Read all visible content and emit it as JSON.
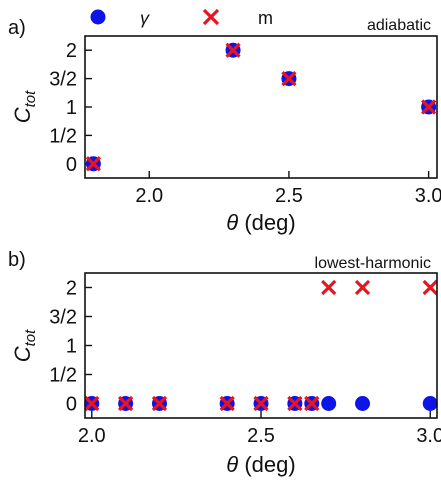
{
  "chart_data": [
    {
      "type": "scatter",
      "panel_label": "a)",
      "annotation": "adiabatic",
      "xlabel": "θ (deg)",
      "ylabel": "C_tot",
      "xlim": [
        1.77,
        3.03
      ],
      "ylim": [
        -0.25,
        2.25
      ],
      "xticks": [
        2.0,
        2.5,
        3.0
      ],
      "xtick_labels": [
        "2.0",
        "2.5",
        "3.0"
      ],
      "yticks": [
        0,
        0.5,
        1,
        1.5,
        2
      ],
      "ytick_labels": [
        "0",
        "1/2",
        "1",
        "3/2",
        "2"
      ],
      "series": [
        {
          "name": "γ",
          "marker": "circle",
          "color": "#0d14e8",
          "x": [
            1.8,
            2.3,
            2.5,
            3.0
          ],
          "y": [
            0,
            2,
            1.5,
            1
          ]
        },
        {
          "name": "m",
          "marker": "cross",
          "color": "#e8141e",
          "x": [
            1.8,
            2.3,
            2.5,
            3.0
          ],
          "y": [
            0,
            2,
            1.5,
            1
          ]
        }
      ]
    },
    {
      "type": "scatter",
      "panel_label": "b)",
      "annotation": "lowest-harmonic",
      "xlabel": "θ (deg)",
      "ylabel": "C_tot",
      "xlim": [
        1.98,
        3.02
      ],
      "ylim": [
        -0.25,
        2.25
      ],
      "xticks": [
        2.0,
        2.5,
        3.0
      ],
      "xtick_labels": [
        "2.0",
        "2.5",
        "3.0"
      ],
      "yticks": [
        0,
        0.5,
        1,
        1.5,
        2
      ],
      "ytick_labels": [
        "0",
        "1/2",
        "1",
        "3/2",
        "2"
      ],
      "series": [
        {
          "name": "γ",
          "marker": "circle",
          "color": "#0d14e8",
          "x": [
            2.0,
            2.1,
            2.2,
            2.4,
            2.5,
            2.6,
            2.65,
            2.7,
            2.8,
            3.0
          ],
          "y": [
            0,
            0,
            0,
            0,
            0,
            0,
            0,
            0,
            0,
            0
          ]
        },
        {
          "name": "m",
          "marker": "cross",
          "color": "#e8141e",
          "x": [
            2.0,
            2.1,
            2.2,
            2.4,
            2.5,
            2.6,
            2.65,
            2.7,
            2.8,
            3.0
          ],
          "y": [
            0,
            0,
            0,
            0,
            0,
            0,
            0,
            2,
            2,
            2
          ]
        }
      ]
    }
  ],
  "legend": {
    "position": "top",
    "entries": [
      {
        "label": "γ",
        "marker": "circle",
        "color": "#0d14e8"
      },
      {
        "label": "m",
        "marker": "cross",
        "color": "#e8141e"
      }
    ]
  }
}
